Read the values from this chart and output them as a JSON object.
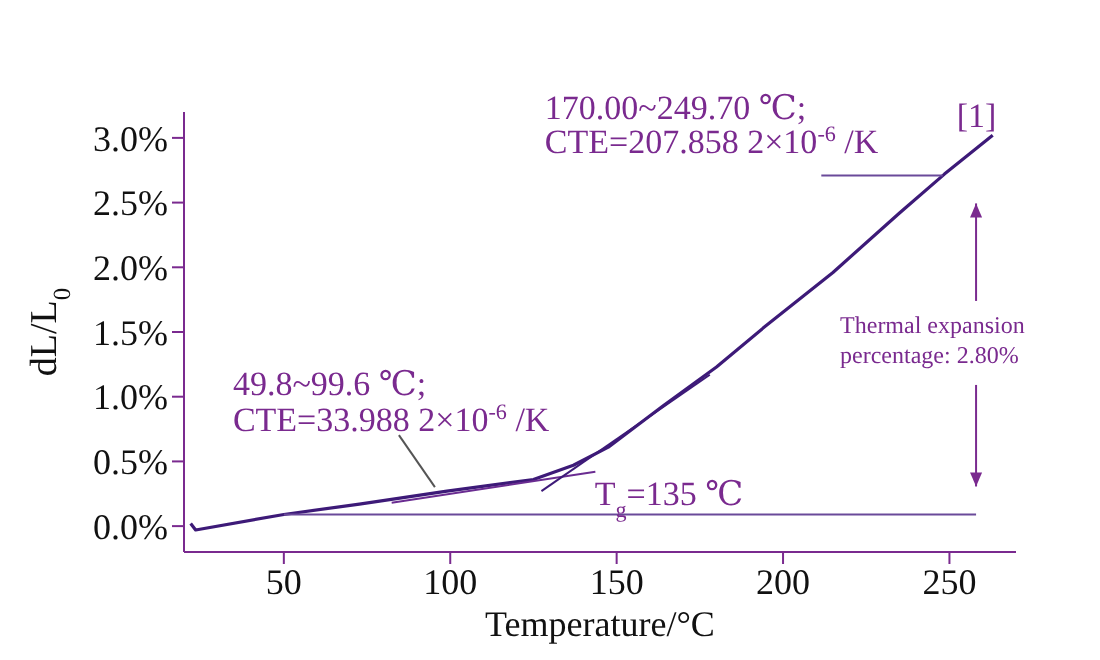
{
  "chart_data": {
    "type": "line",
    "xlabel": "Temperature/°C",
    "ylabel": "dL/L$_{0}$",
    "xlim": [
      20,
      270
    ],
    "xticks": [
      50,
      100,
      150,
      200,
      250
    ],
    "ylim": [
      -0.2,
      3.2
    ],
    "yticks": [
      {
        "value": 0,
        "label": "0.0%"
      },
      {
        "value": 0.5,
        "label": "0.5%"
      },
      {
        "value": 1,
        "label": "1.0%"
      },
      {
        "value": 1.5,
        "label": "1.5%"
      },
      {
        "value": 2,
        "label": "2.0%"
      },
      {
        "value": 2.5,
        "label": "2.5%"
      },
      {
        "value": 3,
        "label": "3.0%"
      }
    ],
    "marker": "none",
    "line_style": "solid",
    "series": [
      {
        "name": "[1]",
        "color": "#3d1a78",
        "x": [
          22,
          23.5,
          50,
          72.7,
          99,
          125,
          137,
          147.5,
          164,
          180,
          194,
          215,
          235,
          248.5,
          263
        ],
        "values": [
          0.02,
          -0.03,
          0.09,
          0.17,
          0.27,
          0.36,
          0.47,
          0.61,
          0.93,
          1.23,
          1.53,
          1.96,
          2.42,
          2.72,
          3.02
        ]
      },
      {
        "type": "line",
        "color": "#6a2c91",
        "x": [
          82.4,
          143.6
        ],
        "values": [
          0.18,
          0.42
        ]
      },
      {
        "type": "line",
        "color": "#3d1a78",
        "x": [
          127.4,
          178
        ],
        "values": [
          0.27,
          1.17
        ]
      },
      {
        "type": "line",
        "color": "#6a4a9a",
        "x": [
          50,
          258
        ],
        "values": [
          0.09,
          0.09
        ]
      },
      {
        "type": "line",
        "color": "#6a4a9a",
        "x": [
          211.5,
          248
        ],
        "values": [
          2.71,
          2.71
        ]
      }
    ],
    "annotations": [
      {
        "text": "49.8~99.6 ℃;\nCTE=33.988 2×10$^{-6}$ /K",
        "x": 99,
        "y": 0.27
      },
      {
        "text": "170.00~249.70 ℃;\nCTE=207.858 2×10$^{-6}$ /K",
        "x": 248,
        "y": 2.71
      },
      {
        "text": "T$_{g}$=135 ℃",
        "x": 135,
        "y": 0.35
      },
      "Thermal expansion\npercentage: 2.80%"
    ]
  }
}
